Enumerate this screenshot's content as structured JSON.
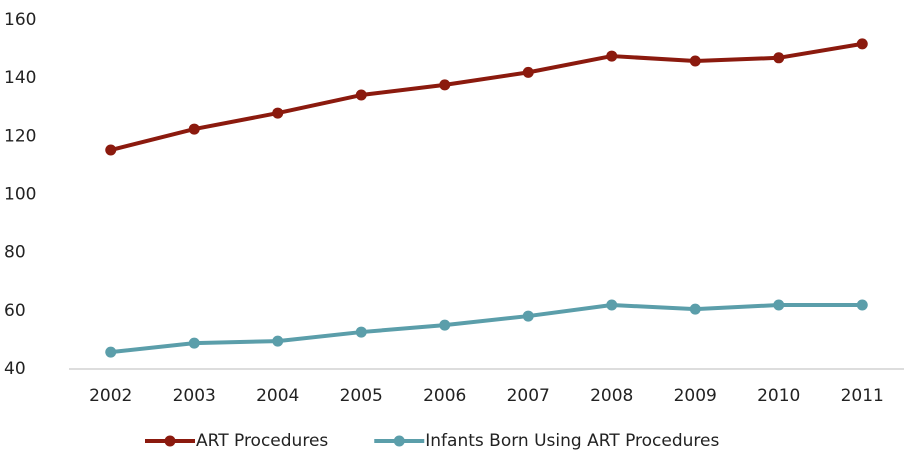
{
  "chart_data": {
    "type": "line",
    "categories": [
      "2002",
      "2003",
      "2004",
      "2005",
      "2006",
      "2007",
      "2008",
      "2009",
      "2010",
      "2011"
    ],
    "series": [
      {
        "name": "ART Procedures",
        "color": "#8b1a0e",
        "values": [
          115.3,
          122.5,
          128,
          134.2,
          137.7,
          142,
          147.6,
          145.9,
          147,
          151.8
        ]
      },
      {
        "name": "Infants Born Using ART Procedures",
        "color": "#5b9eaa",
        "values": [
          45.8,
          48.9,
          49.6,
          52.7,
          55.1,
          58.2,
          62,
          60.6,
          62,
          62
        ]
      }
    ],
    "ylim": [
      40,
      160
    ],
    "yticks": [
      40,
      60,
      80,
      100,
      120,
      140,
      160
    ],
    "grid": false,
    "legend": "bottom"
  }
}
